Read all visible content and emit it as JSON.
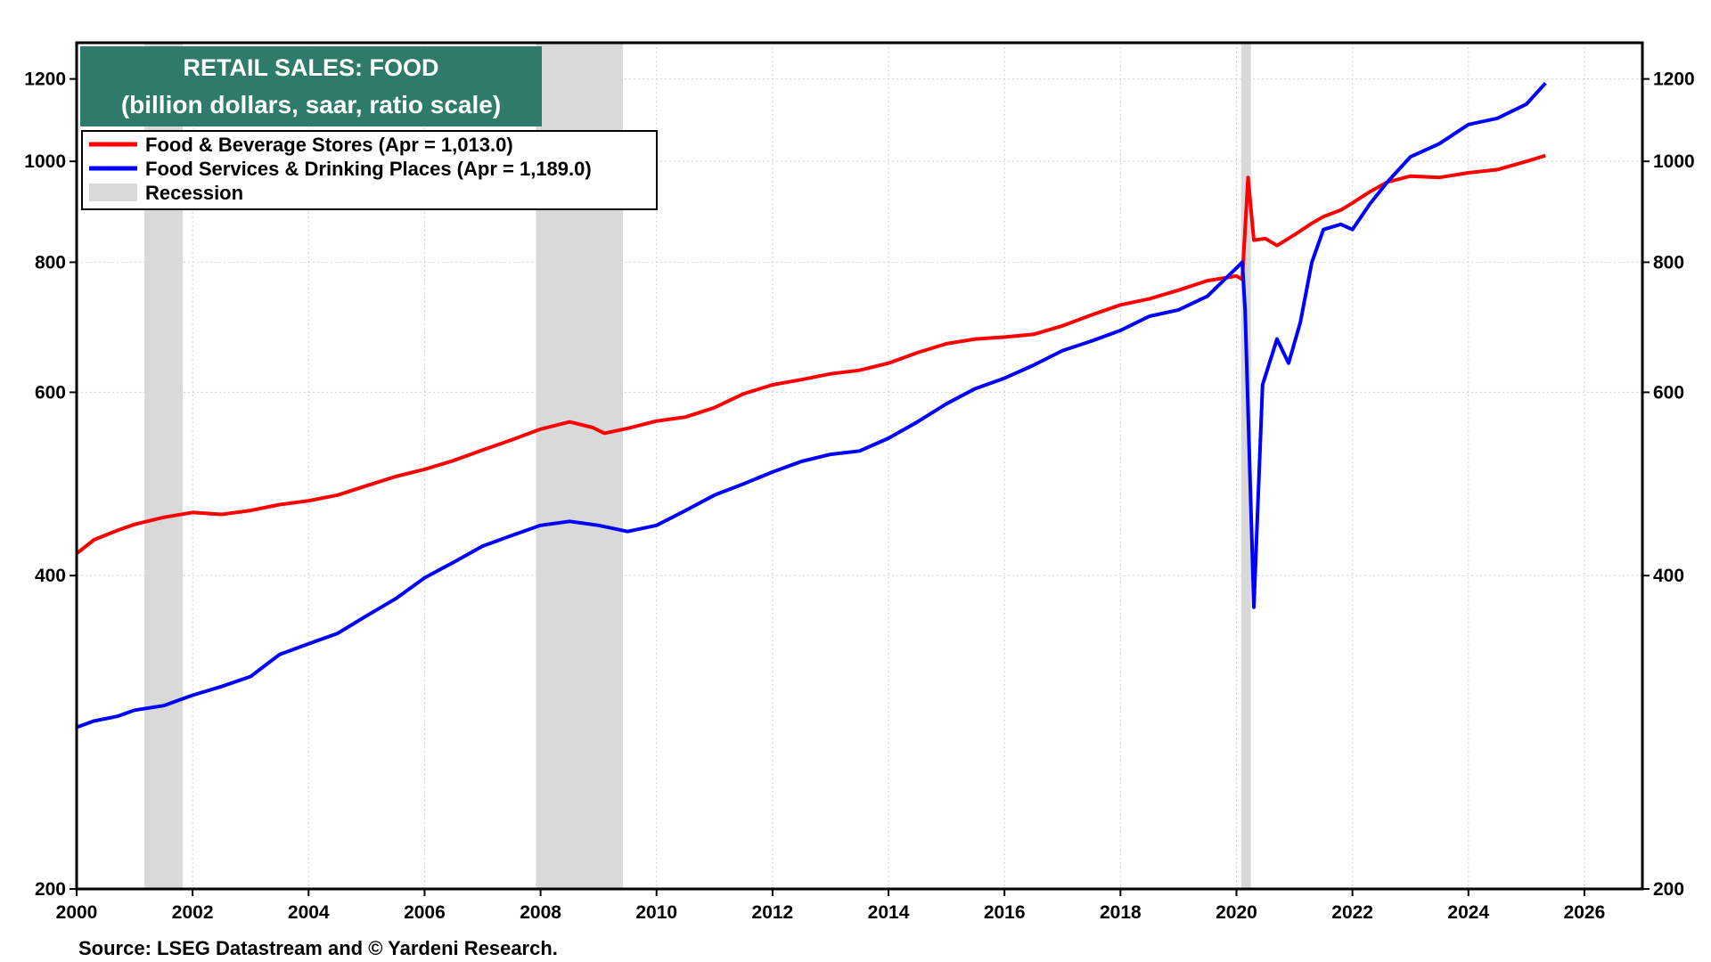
{
  "title_box": {
    "line1": "RETAIL SALES: FOOD",
    "line2": "(billion dollars, saar, ratio scale)",
    "bg_color": "#2e7b6b"
  },
  "legend": {
    "items": [
      {
        "label": "Food & Beverage Stores (Apr = 1,013.0)",
        "color": "#ff0000",
        "kind": "line"
      },
      {
        "label": "Food Services & Drinking Places (Apr = 1,189.0)",
        "color": "#0000ff",
        "kind": "line"
      },
      {
        "label": "Recession",
        "color": "#d9d9d9",
        "kind": "area"
      }
    ]
  },
  "source": "Source: LSEG Datastream and © Yardeni Research.",
  "chart_data": {
    "type": "line",
    "scale": "log",
    "ylim": [
      200,
      1300
    ],
    "xlim": [
      2000,
      2027
    ],
    "y_ticks": [
      200,
      400,
      600,
      800,
      1000,
      1200
    ],
    "x_ticks": [
      2000,
      2002,
      2004,
      2006,
      2008,
      2010,
      2012,
      2014,
      2016,
      2018,
      2020,
      2022,
      2024,
      2026
    ],
    "grid": true,
    "recessions": [
      [
        2001.17,
        2001.83
      ],
      [
        2007.92,
        2009.42
      ],
      [
        2020.08,
        2020.25
      ]
    ],
    "series": [
      {
        "name": "Food & Beverage Stores",
        "color": "#ff0000",
        "points": [
          [
            2000.0,
            420
          ],
          [
            2000.3,
            433
          ],
          [
            2000.7,
            442
          ],
          [
            2001.0,
            448
          ],
          [
            2001.5,
            455
          ],
          [
            2002.0,
            460
          ],
          [
            2002.5,
            458
          ],
          [
            2003.0,
            462
          ],
          [
            2003.5,
            468
          ],
          [
            2004.0,
            472
          ],
          [
            2004.5,
            478
          ],
          [
            2005.0,
            488
          ],
          [
            2005.5,
            498
          ],
          [
            2006.0,
            506
          ],
          [
            2006.5,
            516
          ],
          [
            2007.0,
            528
          ],
          [
            2007.5,
            540
          ],
          [
            2008.0,
            553
          ],
          [
            2008.5,
            562
          ],
          [
            2008.9,
            555
          ],
          [
            2009.1,
            548
          ],
          [
            2009.5,
            554
          ],
          [
            2010.0,
            563
          ],
          [
            2010.5,
            568
          ],
          [
            2011.0,
            580
          ],
          [
            2011.5,
            598
          ],
          [
            2012.0,
            610
          ],
          [
            2012.5,
            617
          ],
          [
            2013.0,
            625
          ],
          [
            2013.5,
            630
          ],
          [
            2014.0,
            640
          ],
          [
            2014.5,
            655
          ],
          [
            2015.0,
            668
          ],
          [
            2015.5,
            675
          ],
          [
            2016.0,
            678
          ],
          [
            2016.5,
            682
          ],
          [
            2017.0,
            695
          ],
          [
            2017.5,
            712
          ],
          [
            2018.0,
            728
          ],
          [
            2018.5,
            738
          ],
          [
            2019.0,
            752
          ],
          [
            2019.5,
            768
          ],
          [
            2020.0,
            776
          ],
          [
            2020.1,
            770
          ],
          [
            2020.2,
            965
          ],
          [
            2020.3,
            840
          ],
          [
            2020.5,
            843
          ],
          [
            2020.7,
            830
          ],
          [
            2021.0,
            850
          ],
          [
            2021.3,
            872
          ],
          [
            2021.5,
            885
          ],
          [
            2021.8,
            898
          ],
          [
            2022.0,
            912
          ],
          [
            2022.3,
            935
          ],
          [
            2022.6,
            955
          ],
          [
            2023.0,
            968
          ],
          [
            2023.5,
            965
          ],
          [
            2024.0,
            975
          ],
          [
            2024.5,
            982
          ],
          [
            2025.0,
            1000
          ],
          [
            2025.33,
            1013
          ]
        ]
      },
      {
        "name": "Food Services & Drinking Places",
        "color": "#0000ff",
        "points": [
          [
            2000.0,
            286
          ],
          [
            2000.3,
            290
          ],
          [
            2000.7,
            293
          ],
          [
            2001.0,
            297
          ],
          [
            2001.5,
            300
          ],
          [
            2002.0,
            307
          ],
          [
            2002.5,
            313
          ],
          [
            2003.0,
            320
          ],
          [
            2003.5,
            336
          ],
          [
            2004.0,
            344
          ],
          [
            2004.5,
            352
          ],
          [
            2005.0,
            366
          ],
          [
            2005.5,
            380
          ],
          [
            2006.0,
            398
          ],
          [
            2006.5,
            412
          ],
          [
            2007.0,
            427
          ],
          [
            2007.5,
            437
          ],
          [
            2008.0,
            447
          ],
          [
            2008.5,
            451
          ],
          [
            2009.0,
            447
          ],
          [
            2009.5,
            441
          ],
          [
            2010.0,
            447
          ],
          [
            2010.5,
            462
          ],
          [
            2011.0,
            478
          ],
          [
            2011.5,
            490
          ],
          [
            2012.0,
            503
          ],
          [
            2012.5,
            515
          ],
          [
            2013.0,
            523
          ],
          [
            2013.5,
            527
          ],
          [
            2014.0,
            542
          ],
          [
            2014.5,
            562
          ],
          [
            2015.0,
            585
          ],
          [
            2015.5,
            605
          ],
          [
            2016.0,
            619
          ],
          [
            2016.5,
            637
          ],
          [
            2017.0,
            658
          ],
          [
            2017.5,
            672
          ],
          [
            2018.0,
            688
          ],
          [
            2018.5,
            710
          ],
          [
            2019.0,
            720
          ],
          [
            2019.5,
            742
          ],
          [
            2020.0,
            790
          ],
          [
            2020.1,
            800
          ],
          [
            2020.15,
            720
          ],
          [
            2020.3,
            373
          ],
          [
            2020.45,
            610
          ],
          [
            2020.7,
            675
          ],
          [
            2020.9,
            640
          ],
          [
            2021.1,
            700
          ],
          [
            2021.3,
            800
          ],
          [
            2021.5,
            860
          ],
          [
            2021.8,
            870
          ],
          [
            2022.0,
            860
          ],
          [
            2022.3,
            910
          ],
          [
            2022.6,
            955
          ],
          [
            2023.0,
            1010
          ],
          [
            2023.5,
            1040
          ],
          [
            2024.0,
            1085
          ],
          [
            2024.5,
            1100
          ],
          [
            2025.0,
            1135
          ],
          [
            2025.33,
            1189
          ]
        ]
      }
    ]
  }
}
